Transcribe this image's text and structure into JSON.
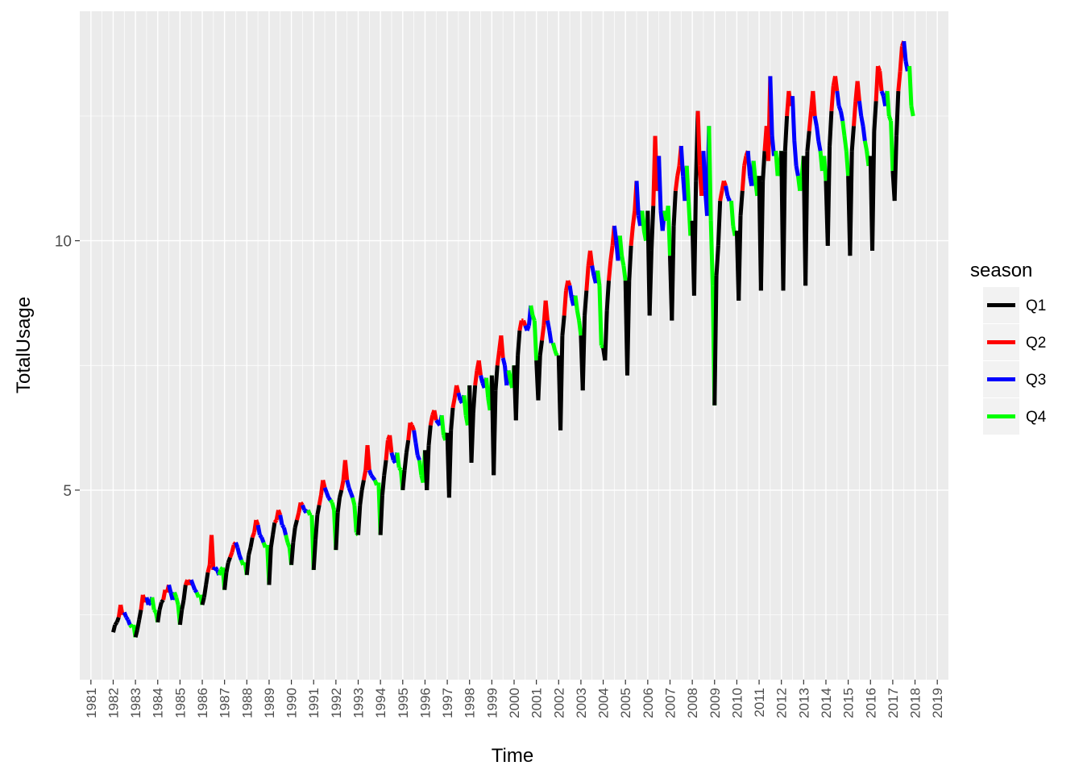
{
  "chart_data": {
    "type": "line",
    "title": "",
    "xlabel": "Time",
    "ylabel": "TotalUsage",
    "xlim": [
      1980.5,
      2019.5
    ],
    "ylim": [
      1.2,
      14.6
    ],
    "x_ticks": [
      1981,
      1982,
      1983,
      1984,
      1985,
      1986,
      1987,
      1988,
      1989,
      1990,
      1991,
      1992,
      1993,
      1994,
      1995,
      1996,
      1997,
      1998,
      1999,
      2000,
      2001,
      2002,
      2003,
      2004,
      2005,
      2006,
      2007,
      2008,
      2009,
      2010,
      2011,
      2012,
      2013,
      2014,
      2015,
      2016,
      2017,
      2018,
      2019
    ],
    "y_ticks": [
      5,
      10
    ],
    "y_minor_ticks": [
      2.5,
      7.5,
      12.5
    ],
    "grid": true,
    "frequency": "monthly",
    "start": [
      1982,
      1
    ],
    "legend": {
      "title": "season",
      "position": "right",
      "entries": [
        {
          "name": "Q1",
          "color": "#000000"
        },
        {
          "name": "Q2",
          "color": "#ff0000"
        },
        {
          "name": "Q3",
          "color": "#0000ff"
        },
        {
          "name": "Q4",
          "color": "#00ff00"
        }
      ]
    },
    "monthly_values": [
      [
        2.15,
        2.3,
        2.35,
        2.45,
        2.7,
        2.5,
        2.55,
        2.45,
        2.4,
        2.3,
        2.25,
        2.3
      ],
      [
        2.05,
        2.2,
        2.4,
        2.6,
        2.9,
        2.75,
        2.85,
        2.7,
        2.75,
        2.85,
        2.6,
        2.55
      ],
      [
        2.35,
        2.6,
        2.75,
        2.8,
        3.0,
        2.95,
        3.1,
        2.95,
        2.8,
        2.95,
        2.85,
        2.7
      ],
      [
        2.3,
        2.6,
        2.8,
        3.1,
        3.2,
        3.1,
        3.2,
        3.1,
        3.0,
        2.95,
        2.85,
        2.9
      ],
      [
        2.7,
        2.85,
        3.1,
        3.35,
        3.5,
        4.1,
        3.4,
        3.45,
        3.4,
        3.3,
        3.4,
        3.45
      ],
      [
        3.0,
        3.35,
        3.55,
        3.65,
        3.75,
        3.9,
        3.95,
        3.85,
        3.7,
        3.6,
        3.5,
        3.55
      ],
      [
        3.3,
        3.7,
        3.85,
        4.05,
        4.15,
        4.4,
        4.3,
        4.1,
        4.05,
        3.95,
        3.85,
        3.9
      ],
      [
        3.1,
        3.85,
        4.1,
        4.35,
        4.4,
        4.6,
        4.5,
        4.3,
        4.25,
        4.1,
        3.95,
        3.85
      ],
      [
        3.5,
        3.95,
        4.25,
        4.4,
        4.55,
        4.75,
        4.7,
        4.6,
        4.55,
        4.6,
        4.5,
        4.5
      ],
      [
        3.4,
        4.0,
        4.5,
        4.7,
        4.9,
        5.2,
        5.05,
        4.95,
        4.85,
        4.8,
        4.75,
        4.6
      ],
      [
        3.8,
        4.55,
        4.85,
        5.0,
        5.2,
        5.6,
        5.2,
        5.05,
        4.95,
        4.85,
        4.7,
        4.15
      ],
      [
        4.1,
        4.7,
        5.0,
        5.2,
        5.4,
        5.9,
        5.4,
        5.3,
        5.25,
        5.2,
        5.1,
        5.15
      ],
      [
        4.1,
        4.9,
        5.3,
        5.6,
        6.0,
        6.1,
        5.75,
        5.6,
        5.55,
        5.75,
        5.45,
        5.4
      ],
      [
        5.0,
        5.4,
        5.75,
        6.0,
        6.35,
        6.3,
        6.2,
        5.95,
        5.7,
        5.6,
        5.3,
        5.15
      ],
      [
        5.8,
        5.0,
        5.9,
        6.3,
        6.5,
        6.6,
        6.4,
        6.35,
        6.3,
        6.5,
        6.1,
        6.0
      ],
      [
        6.15,
        4.85,
        6.2,
        6.65,
        6.85,
        7.1,
        6.95,
        6.8,
        6.75,
        6.9,
        6.5,
        6.3
      ],
      [
        7.1,
        5.55,
        6.55,
        7.1,
        7.4,
        7.6,
        7.3,
        7.15,
        7.05,
        7.25,
        6.85,
        6.6
      ],
      [
        7.3,
        5.3,
        7.0,
        7.5,
        7.8,
        8.1,
        7.65,
        7.5,
        7.1,
        7.4,
        7.2,
        7.05
      ],
      [
        7.5,
        6.4,
        7.7,
        8.2,
        8.4,
        8.4,
        8.3,
        8.2,
        8.3,
        8.7,
        8.5,
        8.4
      ],
      [
        7.6,
        6.8,
        7.7,
        8.0,
        8.3,
        8.8,
        8.4,
        8.2,
        7.95,
        7.95,
        7.8,
        7.7
      ],
      [
        7.7,
        6.2,
        8.1,
        8.5,
        9.0,
        9.2,
        9.1,
        8.85,
        8.7,
        8.9,
        8.6,
        8.4
      ],
      [
        8.1,
        7.0,
        8.5,
        9.0,
        9.5,
        9.8,
        9.5,
        9.3,
        9.15,
        9.4,
        9.1,
        7.9
      ],
      [
        7.85,
        7.6,
        8.6,
        9.2,
        9.6,
        9.9,
        10.3,
        10.0,
        9.6,
        10.1,
        9.7,
        9.5
      ],
      [
        9.2,
        7.3,
        9.2,
        9.9,
        10.3,
        10.6,
        11.2,
        10.5,
        10.3,
        10.6,
        10.2,
        10.0
      ],
      [
        10.6,
        8.5,
        9.8,
        10.7,
        12.1,
        11.0,
        11.7,
        10.6,
        10.2,
        10.6,
        10.4,
        10.7
      ],
      [
        9.7,
        8.4,
        10.3,
        11.0,
        11.3,
        11.5,
        11.9,
        11.3,
        10.8,
        11.5,
        10.8,
        10.1
      ],
      [
        10.4,
        8.9,
        11.2,
        12.6,
        11.5,
        10.9,
        11.8,
        11.0,
        10.5,
        12.3,
        10.4,
        9.1
      ],
      [
        6.7,
        9.3,
        9.9,
        10.8,
        11.0,
        11.2,
        11.1,
        10.9,
        10.8,
        10.8,
        10.3,
        10.1
      ],
      [
        10.2,
        8.8,
        10.5,
        11.0,
        11.5,
        11.7,
        11.8,
        11.3,
        11.1,
        11.6,
        11.2,
        10.9
      ],
      [
        11.3,
        9.0,
        11.2,
        11.8,
        12.3,
        11.6,
        13.3,
        12.1,
        11.7,
        11.8,
        11.3,
        11.5
      ],
      [
        11.8,
        9.0,
        11.8,
        12.5,
        13.0,
        12.7,
        12.9,
        12.0,
        11.5,
        11.3,
        11.0,
        11.3
      ],
      [
        11.7,
        9.1,
        11.8,
        12.2,
        12.6,
        13.0,
        12.5,
        12.3,
        12.0,
        11.8,
        11.4,
        11.7
      ],
      [
        11.2,
        9.9,
        11.9,
        12.6,
        13.1,
        13.3,
        13.0,
        12.7,
        12.6,
        12.4,
        12.1,
        11.8
      ],
      [
        11.3,
        9.7,
        11.8,
        12.3,
        12.8,
        13.2,
        12.8,
        12.5,
        12.3,
        12.0,
        11.8,
        11.5
      ],
      [
        11.7,
        9.8,
        12.2,
        12.8,
        13.5,
        13.4,
        13.0,
        12.9,
        12.7,
        13.0,
        12.5,
        12.4
      ],
      [
        11.4,
        10.8,
        12.1,
        13.0,
        13.4,
        13.9,
        14.0,
        13.6,
        13.4,
        13.5,
        12.7,
        12.5
      ]
    ]
  }
}
